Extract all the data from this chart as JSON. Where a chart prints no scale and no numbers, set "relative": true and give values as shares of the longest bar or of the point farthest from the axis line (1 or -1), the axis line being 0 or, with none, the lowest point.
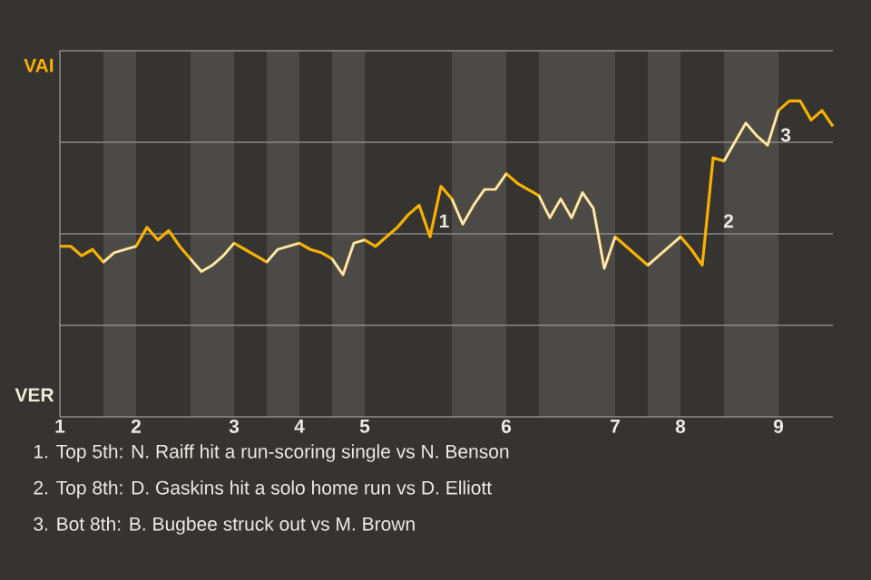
{
  "chart_data": {
    "type": "line",
    "relative": true,
    "grid": "y",
    "line_style": "solid",
    "categories": [
      "1",
      null,
      null,
      null,
      null,
      null,
      null,
      "2",
      null,
      null,
      null,
      null,
      null,
      null,
      null,
      null,
      "3",
      null,
      null,
      null,
      null,
      null,
      "4",
      null,
      null,
      null,
      null,
      null,
      "5",
      null,
      null,
      null,
      null,
      null,
      null,
      null,
      null,
      null,
      null,
      null,
      null,
      "6",
      null,
      null,
      null,
      null,
      null,
      null,
      null,
      null,
      null,
      "7",
      null,
      null,
      null,
      null,
      null,
      "8",
      null,
      null,
      null,
      null,
      null,
      null,
      null,
      null,
      "9",
      null,
      null,
      null,
      null,
      null
    ],
    "series": [
      {
        "name": "VAI",
        "color": "#f9b000",
        "values": [
          0.54,
          0.54,
          0.51,
          0.53,
          0.49,
          0.52,
          0.53,
          0.54,
          0.6,
          0.56,
          0.59,
          0.54,
          0.5,
          0.46,
          0.48,
          0.51,
          0.55,
          0.53,
          0.51,
          0.49,
          0.53,
          0.54,
          0.55,
          0.53,
          0.52,
          0.5,
          0.45,
          0.55,
          0.56,
          0.54,
          0.57,
          0.6,
          0.64,
          0.67,
          0.57,
          0.73,
          0.69,
          0.61,
          0.67,
          0.72,
          0.72,
          0.77,
          0.74,
          0.72,
          0.7,
          0.63,
          0.69,
          0.63,
          0.71,
          0.66,
          0.47,
          0.57,
          0.54,
          0.51,
          0.48,
          0.51,
          0.54,
          0.57,
          0.53,
          0.48,
          0.82,
          0.81,
          0.87,
          0.93,
          0.89,
          0.86,
          0.97,
          1,
          1,
          0.94,
          0.97,
          0.92
        ]
      },
      {
        "name": "VER",
        "color": "#f1ecd9",
        "values": [
          null,
          null,
          null,
          null,
          0.49,
          0.52,
          0.53,
          0.54,
          null,
          null,
          null,
          null,
          0.5,
          0.46,
          0.48,
          0.51,
          0.55,
          null,
          null,
          0.49,
          0.53,
          0.54,
          0.55,
          null,
          null,
          0.5,
          0.45,
          0.55,
          0.56,
          null,
          null,
          null,
          null,
          null,
          null,
          null,
          0.69,
          0.61,
          0.67,
          0.72,
          0.72,
          0.77,
          null,
          null,
          0.7,
          0.63,
          0.69,
          0.63,
          0.71,
          0.66,
          0.47,
          0.57,
          null,
          null,
          0.48,
          0.51,
          0.54,
          0.57,
          null,
          null,
          null,
          0.81,
          0.87,
          0.93,
          0.89,
          0.86,
          0.97,
          null,
          null,
          null,
          null,
          null
        ]
      }
    ],
    "annotations": [
      "1",
      "2",
      "3",
      "1. Top 5th: N. Raiff hit a run-scoring single vs N. Benson",
      "2. Top 8th: D. Gaskins hit a solo home run vs D. Elliott",
      "3. Bot 8th: B. Bugbee struck out vs M. Brown"
    ]
  }
}
